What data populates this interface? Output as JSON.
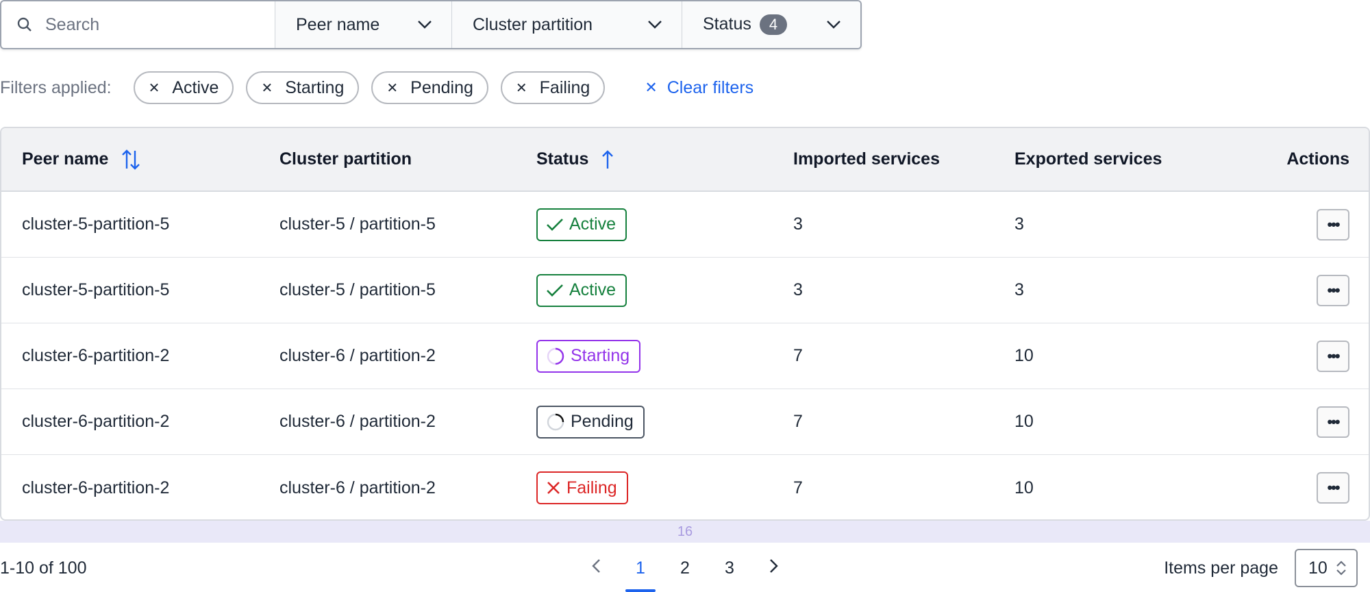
{
  "toolbar": {
    "search_placeholder": "Search",
    "peer_name": "Peer name",
    "cluster_partition": "Cluster partition",
    "status": "Status",
    "status_count": "4"
  },
  "filters": {
    "label": "Filters applied:",
    "chips": [
      "Active",
      "Starting",
      "Pending",
      "Failing"
    ],
    "clear": "Clear filters"
  },
  "table": {
    "headers": [
      "Peer name",
      "Cluster partition",
      "Status",
      "Imported services",
      "Exported services",
      "Actions"
    ],
    "rows": [
      {
        "peer": "cluster-5-partition-5",
        "partition": "cluster-5 / partition-5",
        "status": "Active",
        "imported": "3",
        "exported": "3"
      },
      {
        "peer": "cluster-5-partition-5",
        "partition": "cluster-5 / partition-5",
        "status": "Active",
        "imported": "3",
        "exported": "3"
      },
      {
        "peer": "cluster-6-partition-2",
        "partition": "cluster-6 / partition-2",
        "status": "Starting",
        "imported": "7",
        "exported": "10"
      },
      {
        "peer": "cluster-6-partition-2",
        "partition": "cluster-6 / partition-2",
        "status": "Pending",
        "imported": "7",
        "exported": "10"
      },
      {
        "peer": "cluster-6-partition-2",
        "partition": "cluster-6 / partition-2",
        "status": "Failing",
        "imported": "7",
        "exported": "10"
      }
    ]
  },
  "status_colors": {
    "Active": "#15803d",
    "Starting": "#9333ea",
    "Pending": "#4b5563",
    "Failing": "#dc2626"
  },
  "band_label": "16",
  "footer": {
    "range": "1-10 of 100",
    "pages": [
      "1",
      "2",
      "3"
    ],
    "current_page": "1",
    "items_per_page_label": "Items per page",
    "items_per_page": "10"
  }
}
